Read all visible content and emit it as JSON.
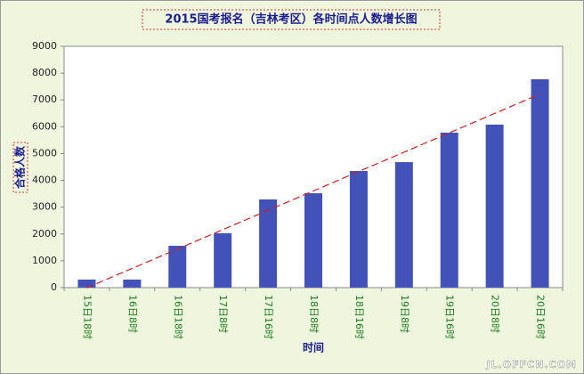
{
  "chart_data": {
    "type": "bar",
    "title": "2015国考报名（吉林考区）各时间点人数增长图",
    "x_label": "时间",
    "y_label": "合格人数",
    "categories": [
      "15日18时",
      "16日8时",
      "16日18时",
      "17日8时",
      "17日16时",
      "18日8时",
      "18日16时",
      "19日8时",
      "19日16时",
      "20日8时",
      "20日16时"
    ],
    "values": [
      300,
      300,
      1560,
      2030,
      3290,
      3520,
      4350,
      4680,
      5780,
      6080,
      7770
    ],
    "color": "#4352b8",
    "trendline": "linear",
    "trendline_color": "#cc2020",
    "ylim": [
      0,
      9000
    ],
    "yticks": [
      0,
      1000,
      2000,
      3000,
      4000,
      5000,
      6000,
      7000,
      8000,
      9000
    ],
    "grid": false
  },
  "watermark": "JL.OFFCN.COM"
}
